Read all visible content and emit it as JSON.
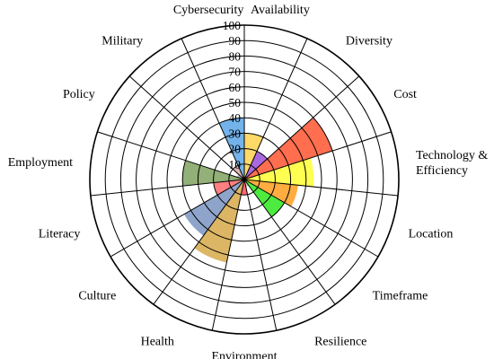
{
  "chart_data": {
    "type": "polar-bar",
    "radial_axis": {
      "range": [
        0,
        100
      ],
      "ticks": [
        "10",
        "20",
        "30",
        "40",
        "50",
        "60",
        "70",
        "80",
        "90",
        "100"
      ]
    },
    "categories": [
      "Availability",
      "Diversity",
      "Cost",
      "Technology & Efficiency",
      "Location",
      "Timeframe",
      "Resilience",
      "Environment",
      "Health",
      "Culture",
      "Literacy",
      "Employment",
      "Policy",
      "Military",
      "Cybersecurity"
    ],
    "values": [
      30,
      20,
      60,
      45,
      35,
      30,
      5,
      10,
      55,
      45,
      20,
      40,
      5,
      10,
      40
    ],
    "colors": [
      "#FFD24D",
      "#9B4FD8",
      "#FF5530",
      "#FFFF33",
      "#FF9D1F",
      "#2EE61E",
      "#C8C8C8",
      "#FF4D5A",
      "#D6A94A",
      "#7A94C2",
      "#FF6A6A",
      "#7FA25F",
      "#B0B0B0",
      "#D9A8A8",
      "#5AA5E6"
    ]
  }
}
